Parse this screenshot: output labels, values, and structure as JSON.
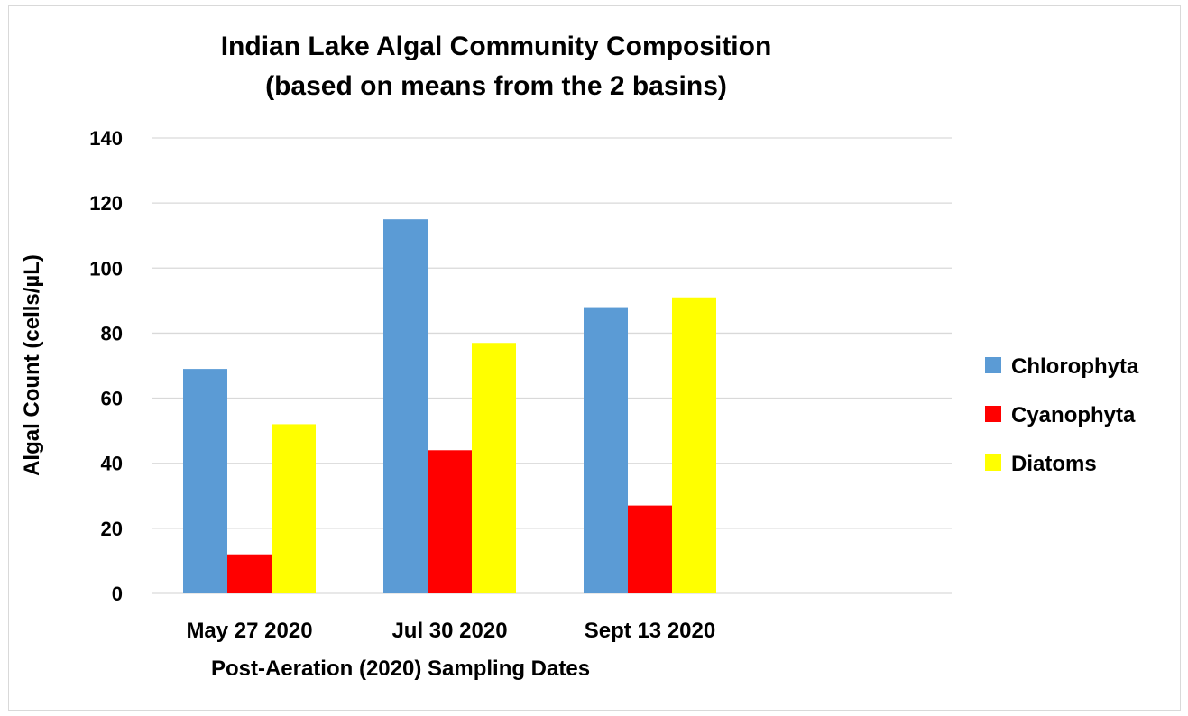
{
  "chart_data": {
    "type": "bar",
    "title_line1": "Indian Lake Algal Community Composition",
    "title_line2": "(based on means from the 2 basins)",
    "xlabel": "Post-Aeration (2020) Sampling Dates",
    "ylabel": "Algal Count (cells/µL)",
    "categories": [
      "May 27 2020",
      "Jul 30 2020",
      "Sept 13 2020"
    ],
    "ylim": [
      0,
      140
    ],
    "yticks": [
      0,
      20,
      40,
      60,
      80,
      100,
      120,
      140
    ],
    "grid": true,
    "legend_position": "right",
    "series": [
      {
        "name": "Chlorophyta",
        "color": "#5b9bd5",
        "values": [
          69,
          115,
          88
        ]
      },
      {
        "name": "Cyanophyta",
        "color": "#ff0000",
        "values": [
          12,
          44,
          27
        ]
      },
      {
        "name": "Diatoms",
        "color": "#ffff00",
        "values": [
          52,
          77,
          91
        ]
      }
    ]
  }
}
